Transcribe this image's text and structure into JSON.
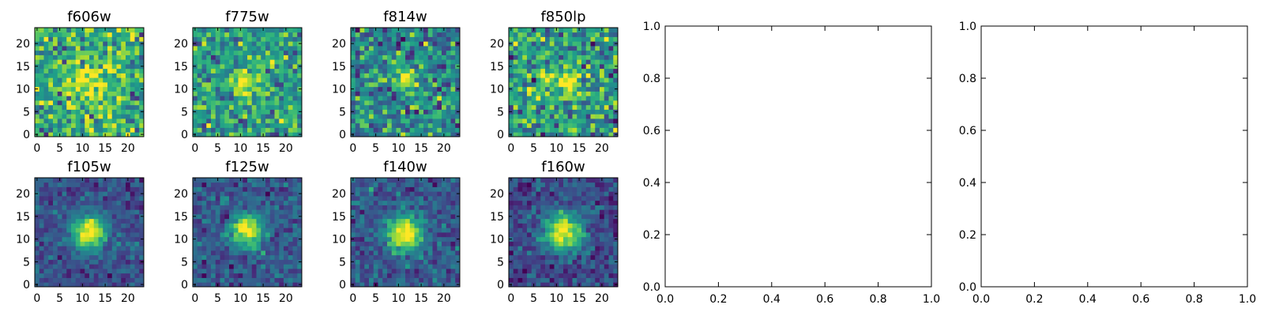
{
  "chart_data": [
    {
      "type": "heatmap",
      "layout_row": 0,
      "title": "f606w",
      "xlim": [
        -0.5,
        23.5
      ],
      "ylim": [
        -0.5,
        23.5
      ],
      "xticks": [
        0,
        5,
        10,
        15,
        20
      ],
      "yticks": [
        0,
        5,
        10,
        15,
        20
      ],
      "tick_labels": [
        "0",
        "5",
        "10",
        "15",
        "20"
      ],
      "image_size": [
        24,
        24
      ],
      "source_center": [
        11.5,
        11.5
      ],
      "source_peak": 0.35,
      "source_width": 3.5,
      "noise_mean": 0.62,
      "noise_std": 0.2,
      "colormap": "viridis",
      "grid": false
    },
    {
      "type": "heatmap",
      "layout_row": 0,
      "title": "f775w",
      "xlim": [
        -0.5,
        23.5
      ],
      "ylim": [
        -0.5,
        23.5
      ],
      "xticks": [
        0,
        5,
        10,
        15,
        20
      ],
      "yticks": [
        0,
        5,
        10,
        15,
        20
      ],
      "tick_labels": [
        "0",
        "5",
        "10",
        "15",
        "20"
      ],
      "image_size": [
        24,
        24
      ],
      "source_center": [
        11.5,
        11.5
      ],
      "source_peak": 0.45,
      "source_width": 2.2,
      "noise_mean": 0.55,
      "noise_std": 0.16,
      "colormap": "viridis",
      "grid": false
    },
    {
      "type": "heatmap",
      "layout_row": 0,
      "title": "f814w",
      "xlim": [
        -0.5,
        23.5
      ],
      "ylim": [
        -0.5,
        23.5
      ],
      "xticks": [
        0,
        5,
        10,
        15,
        20
      ],
      "yticks": [
        0,
        5,
        10,
        15,
        20
      ],
      "tick_labels": [
        "0",
        "5",
        "10",
        "15",
        "20"
      ],
      "image_size": [
        24,
        24
      ],
      "source_center": [
        11.5,
        11.8
      ],
      "source_peak": 0.55,
      "source_width": 2.0,
      "noise_mean": 0.45,
      "noise_std": 0.17,
      "colormap": "viridis",
      "grid": false
    },
    {
      "type": "heatmap",
      "layout_row": 0,
      "title": "f850lp",
      "xlim": [
        -0.5,
        23.5
      ],
      "ylim": [
        -0.5,
        23.5
      ],
      "xticks": [
        0,
        5,
        10,
        15,
        20
      ],
      "yticks": [
        0,
        5,
        10,
        15,
        20
      ],
      "tick_labels": [
        "0",
        "5",
        "10",
        "15",
        "20"
      ],
      "image_size": [
        24,
        24
      ],
      "source_center": [
        11.5,
        11.5
      ],
      "source_peak": 0.45,
      "source_width": 2.5,
      "noise_mean": 0.55,
      "noise_std": 0.2,
      "colormap": "viridis",
      "grid": false
    },
    {
      "type": "heatmap",
      "layout_row": 1,
      "title": "f105w",
      "xlim": [
        -0.5,
        23.5
      ],
      "ylim": [
        -0.5,
        23.5
      ],
      "xticks": [
        0,
        5,
        10,
        15,
        20
      ],
      "yticks": [
        0,
        5,
        10,
        15,
        20
      ],
      "tick_labels": [
        "0",
        "5",
        "10",
        "15",
        "20"
      ],
      "image_size": [
        24,
        24
      ],
      "source_center": [
        11.5,
        11.5
      ],
      "source_peak": 0.8,
      "source_width": 2.6,
      "noise_mean": 0.25,
      "noise_std": 0.09,
      "colormap": "viridis",
      "grid": false
    },
    {
      "type": "heatmap",
      "layout_row": 1,
      "title": "f125w",
      "xlim": [
        -0.5,
        23.5
      ],
      "ylim": [
        -0.5,
        23.5
      ],
      "xticks": [
        0,
        5,
        10,
        15,
        20
      ],
      "yticks": [
        0,
        5,
        10,
        15,
        20
      ],
      "tick_labels": [
        "0",
        "5",
        "10",
        "15",
        "20"
      ],
      "image_size": [
        24,
        24
      ],
      "source_center": [
        11.5,
        11.8
      ],
      "source_peak": 0.75,
      "source_width": 2.4,
      "noise_mean": 0.28,
      "noise_std": 0.1,
      "colormap": "viridis",
      "grid": false
    },
    {
      "type": "heatmap",
      "layout_row": 1,
      "title": "f140w",
      "xlim": [
        -0.5,
        23.5
      ],
      "ylim": [
        -0.5,
        23.5
      ],
      "xticks": [
        0,
        5,
        10,
        15,
        20
      ],
      "yticks": [
        0,
        5,
        10,
        15,
        20
      ],
      "tick_labels": [
        "0",
        "5",
        "10",
        "15",
        "20"
      ],
      "image_size": [
        24,
        24
      ],
      "source_center": [
        11.2,
        11.5
      ],
      "source_peak": 0.8,
      "source_width": 2.7,
      "noise_mean": 0.28,
      "noise_std": 0.1,
      "colormap": "viridis",
      "grid": false
    },
    {
      "type": "heatmap",
      "layout_row": 1,
      "title": "f160w",
      "xlim": [
        -0.5,
        23.5
      ],
      "ylim": [
        -0.5,
        23.5
      ],
      "xticks": [
        0,
        5,
        10,
        15,
        20
      ],
      "yticks": [
        0,
        5,
        10,
        15,
        20
      ],
      "tick_labels": [
        "0",
        "5",
        "10",
        "15",
        "20"
      ],
      "image_size": [
        24,
        24
      ],
      "source_center": [
        11.5,
        11.5
      ],
      "source_peak": 0.8,
      "source_width": 3.0,
      "noise_mean": 0.22,
      "noise_std": 0.1,
      "colormap": "viridis",
      "grid": false
    },
    {
      "type": "line",
      "title": "",
      "xlim": [
        0.0,
        1.0
      ],
      "ylim": [
        0.0,
        1.0
      ],
      "xticks": [
        0.0,
        0.2,
        0.4,
        0.6,
        0.8,
        1.0
      ],
      "yticks": [
        0.0,
        0.2,
        0.4,
        0.6,
        0.8,
        1.0
      ],
      "xtick_labels": [
        "0.0",
        "0.2",
        "0.4",
        "0.6",
        "0.8",
        "1.0"
      ],
      "ytick_labels": [
        "0.0",
        "0.2",
        "0.4",
        "0.6",
        "0.8",
        "1.0"
      ],
      "series": [],
      "grid": false
    },
    {
      "type": "line",
      "title": "",
      "xlim": [
        0.0,
        1.0
      ],
      "ylim": [
        0.0,
        1.0
      ],
      "xticks": [
        0.0,
        0.2,
        0.4,
        0.6,
        0.8,
        1.0
      ],
      "yticks": [
        0.0,
        0.2,
        0.4,
        0.6,
        0.8,
        1.0
      ],
      "xtick_labels": [
        "0.0",
        "0.2",
        "0.4",
        "0.6",
        "0.8",
        "1.0"
      ],
      "ytick_labels": [
        "0.0",
        "0.2",
        "0.4",
        "0.6",
        "0.8",
        "1.0"
      ],
      "series": [],
      "grid": false
    }
  ]
}
